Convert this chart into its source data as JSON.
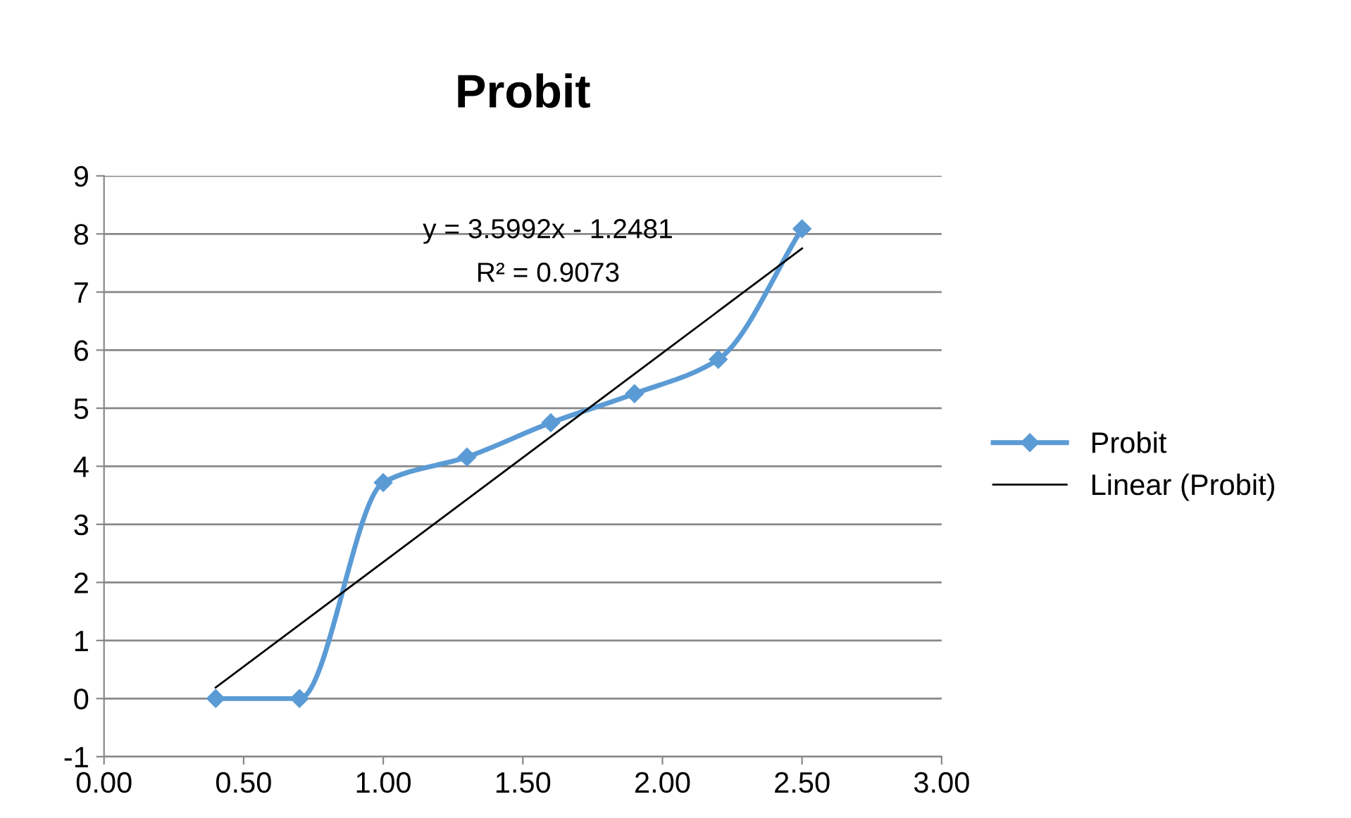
{
  "chart_data": {
    "type": "line",
    "title": "Probit",
    "series": [
      {
        "name": "Probit",
        "color": "#5b9bd5",
        "marker": "diamond",
        "x": [
          0.4,
          0.7,
          1.0,
          1.3,
          1.6,
          1.9,
          2.2,
          2.5
        ],
        "values": [
          0,
          0,
          3.72,
          4.16,
          4.75,
          5.25,
          5.84,
          8.09
        ]
      },
      {
        "name": "Linear (Probit)",
        "color": "#000000",
        "marker": "none",
        "x": [
          0.4,
          2.5
        ],
        "values": [
          0.19,
          7.75
        ]
      }
    ],
    "annotations": [
      "y = 3.5992x - 1.2481",
      "R² = 0.9073"
    ],
    "xlim": [
      0,
      3
    ],
    "xticks": [
      {
        "value": 0,
        "label": "0.00"
      },
      {
        "value": 0.5,
        "label": "0.50"
      },
      {
        "value": 1,
        "label": "1.00"
      },
      {
        "value": 1.5,
        "label": "1.50"
      },
      {
        "value": 2,
        "label": "2.00"
      },
      {
        "value": 2.5,
        "label": "2.50"
      },
      {
        "value": 3,
        "label": "3.00"
      }
    ],
    "ylim": [
      -1,
      9
    ],
    "yticks": [
      -1,
      0,
      1,
      2,
      3,
      4,
      5,
      6,
      7,
      8,
      9
    ],
    "grid": "y",
    "legend": "right"
  }
}
